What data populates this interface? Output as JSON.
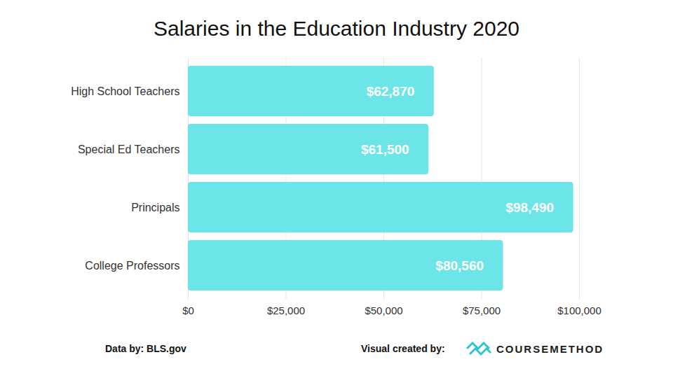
{
  "chart_data": {
    "type": "bar",
    "title": "Salaries in the Education Industry 2020",
    "orientation": "horizontal",
    "categories": [
      "High School Teachers",
      "Special Ed Teachers",
      "Principals",
      "College Professors"
    ],
    "values": [
      62870,
      61500,
      98490,
      80560
    ],
    "value_labels": [
      "$62,870",
      "$61,500",
      "$98,490",
      "$80,560"
    ],
    "data_labels": true,
    "color": "#6ce5e8",
    "xlim": [
      0,
      100000
    ],
    "xticks": [
      {
        "value": 0,
        "label": "$0"
      },
      {
        "value": 25000,
        "label": "$25,000"
      },
      {
        "value": 50000,
        "label": "$50,000"
      },
      {
        "value": 75000,
        "label": "$75,000"
      },
      {
        "value": 100000,
        "label": "$100,000"
      }
    ],
    "grid": true,
    "annotations": [
      "Data by: BLS.gov",
      "Visual created by:",
      "COURSEMETHOD"
    ]
  }
}
